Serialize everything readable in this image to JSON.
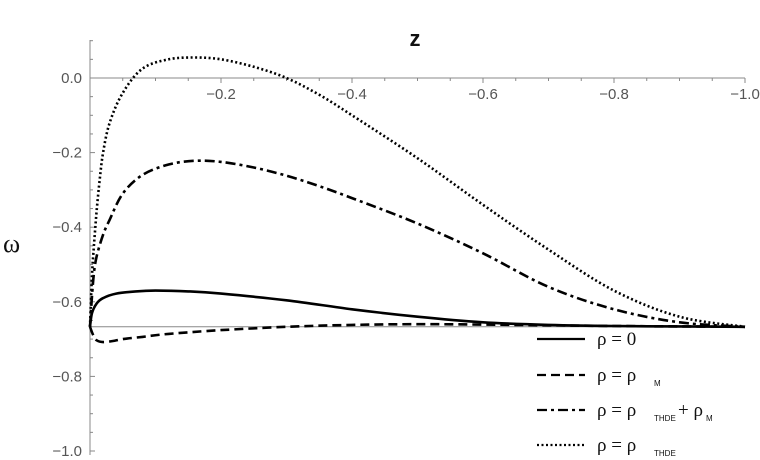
{
  "chart_data": {
    "type": "line",
    "xlabel": "z",
    "ylabel": "ω",
    "xlim": [
      0,
      -1.0
    ],
    "ylim": [
      -1.0,
      0.1
    ],
    "xticks": [
      "−0.2",
      "−0.4",
      "−0.6",
      "−0.8",
      "−1.0"
    ],
    "xtick_values": [
      -0.2,
      -0.4,
      -0.6,
      -0.8,
      -1.0
    ],
    "yticks": [
      "0.0",
      "−0.2",
      "−0.4",
      "−0.6",
      "−0.8",
      "−1.0"
    ],
    "ytick_values": [
      0.0,
      -0.2,
      -0.4,
      -0.6,
      -0.8,
      -1.0
    ],
    "reference_line": -0.667,
    "legend_position": "bottom-right",
    "series": [
      {
        "name": "ρ = 0",
        "label_main": "ρ = 0",
        "label_parts": [],
        "dash": "solid",
        "x": [
          0,
          -0.003,
          -0.01,
          -0.02,
          -0.04,
          -0.07,
          -0.1,
          -0.15,
          -0.2,
          -0.3,
          -0.4,
          -0.5,
          -0.6,
          -0.7,
          -0.8,
          -0.9,
          -1.0
        ],
        "y": [
          -0.667,
          -0.63,
          -0.605,
          -0.59,
          -0.578,
          -0.572,
          -0.57,
          -0.572,
          -0.578,
          -0.596,
          -0.62,
          -0.64,
          -0.655,
          -0.662,
          -0.665,
          -0.666,
          -0.667
        ]
      },
      {
        "name": "ρ = ρM",
        "label_main": "ρ = ρ",
        "label_parts": [
          "M"
        ],
        "dash": "dashed",
        "x": [
          0,
          -0.005,
          -0.01,
          -0.02,
          -0.035,
          -0.05,
          -0.08,
          -0.12,
          -0.2,
          -0.3,
          -0.4,
          -0.5,
          -0.6,
          -0.7,
          -0.8,
          -0.9,
          -1.0
        ],
        "y": [
          -0.667,
          -0.69,
          -0.703,
          -0.708,
          -0.705,
          -0.7,
          -0.694,
          -0.686,
          -0.676,
          -0.667,
          -0.662,
          -0.66,
          -0.661,
          -0.663,
          -0.665,
          -0.666,
          -0.667
        ]
      },
      {
        "name": "ρ = ρTHDE + ρM",
        "label_main": "ρ = ρ",
        "label_parts": [
          "THDE",
          "+ ρ",
          "M"
        ],
        "dash": "dashdot",
        "x": [
          0,
          -0.005,
          -0.01,
          -0.02,
          -0.03,
          -0.05,
          -0.08,
          -0.12,
          -0.16,
          -0.2,
          -0.25,
          -0.3,
          -0.35,
          -0.4,
          -0.5,
          -0.6,
          -0.7,
          -0.8,
          -0.9,
          -1.0
        ],
        "y": [
          -0.667,
          -0.54,
          -0.48,
          -0.42,
          -0.38,
          -0.31,
          -0.26,
          -0.232,
          -0.222,
          -0.225,
          -0.24,
          -0.262,
          -0.29,
          -0.322,
          -0.39,
          -0.47,
          -0.56,
          -0.62,
          -0.655,
          -0.667
        ]
      },
      {
        "name": "ρ = ρTHDE",
        "label_main": "ρ = ρ",
        "label_parts": [
          "THDE"
        ],
        "dash": "dotted",
        "x": [
          0,
          -0.003,
          -0.006,
          -0.01,
          -0.015,
          -0.02,
          -0.03,
          -0.05,
          -0.08,
          -0.12,
          -0.16,
          -0.2,
          -0.25,
          -0.3,
          -0.35,
          -0.4,
          -0.5,
          -0.6,
          -0.7,
          -0.8,
          -0.9,
          -1.0
        ],
        "y": [
          -0.667,
          -0.53,
          -0.45,
          -0.36,
          -0.27,
          -0.2,
          -0.12,
          -0.04,
          0.025,
          0.05,
          0.055,
          0.05,
          0.03,
          0.0,
          -0.045,
          -0.1,
          -0.215,
          -0.34,
          -0.46,
          -0.57,
          -0.64,
          -0.667
        ]
      }
    ]
  }
}
